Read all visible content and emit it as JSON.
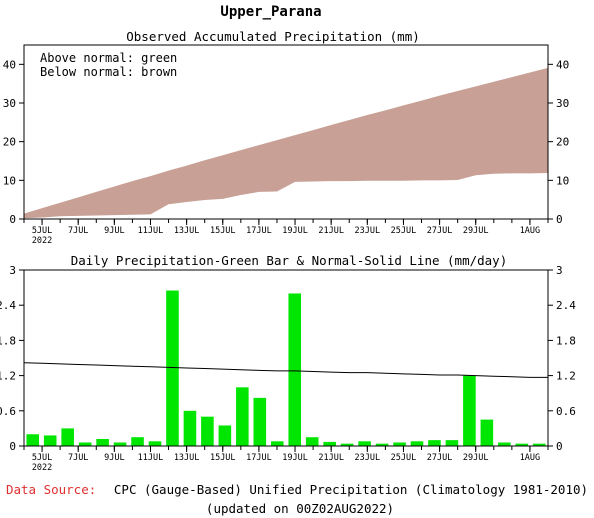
{
  "title": "Upper_Parana",
  "footer": {
    "source_label": "Data Source:",
    "source_text": "CPC (Gauge-Based) Unified Precipitation (Climatology 1981-2010)",
    "updated": "(updated on 00Z02AUG2022)"
  },
  "colors": {
    "normal_area": "#c8a096",
    "observed_area": "#ffffff",
    "bars": "#00e600",
    "normal_line": "#000000",
    "source_label": "#e03030"
  },
  "x_tick_labels": [
    "5JUL",
    "7JUL",
    "9JUL",
    "11JUL",
    "13JUL",
    "15JUL",
    "17JUL",
    "19JUL",
    "21JUL",
    "23JUL",
    "25JUL",
    "27JUL",
    "29JUL",
    "1AUG"
  ],
  "year_label": "2022",
  "chart_data": [
    {
      "type": "area",
      "title": "Observed Accumulated Precipitation (mm)",
      "notes": [
        "Above normal: green",
        "Below normal: brown"
      ],
      "x": [
        "4JUL",
        "5JUL",
        "6JUL",
        "7JUL",
        "8JUL",
        "9JUL",
        "10JUL",
        "11JUL",
        "12JUL",
        "13JUL",
        "14JUL",
        "15JUL",
        "16JUL",
        "17JUL",
        "18JUL",
        "19JUL",
        "20JUL",
        "21JUL",
        "22JUL",
        "23JUL",
        "24JUL",
        "25JUL",
        "26JUL",
        "27JUL",
        "28JUL",
        "29JUL",
        "30JUL",
        "31JUL",
        "1AUG",
        "2AUG"
      ],
      "series": [
        {
          "name": "normal",
          "values": [
            1.4,
            2.8,
            4.2,
            5.6,
            7.0,
            8.4,
            9.8,
            11.1,
            12.5,
            13.8,
            15.2,
            16.5,
            17.8,
            19.1,
            20.4,
            21.7,
            23.0,
            24.3,
            25.6,
            26.9,
            28.1,
            29.4,
            30.6,
            31.9,
            33.1,
            34.3,
            35.5,
            36.7,
            37.9,
            39.1
          ]
        },
        {
          "name": "observed",
          "values": [
            0.2,
            0.4,
            0.7,
            0.8,
            0.9,
            1.0,
            1.1,
            1.2,
            3.8,
            4.4,
            4.9,
            5.2,
            6.2,
            7.0,
            7.1,
            9.6,
            9.7,
            9.8,
            9.8,
            9.9,
            9.9,
            9.9,
            10.0,
            10.0,
            10.1,
            11.3,
            11.7,
            11.8,
            11.8,
            11.9
          ]
        }
      ],
      "ylim": [
        0,
        45
      ],
      "yticks": [
        0,
        10,
        20,
        30,
        40
      ]
    },
    {
      "type": "bar",
      "title": "Daily Precipitation-Green Bar & Normal-Solid Line (mm/day)",
      "x": [
        "4JUL",
        "5JUL",
        "6JUL",
        "7JUL",
        "8JUL",
        "9JUL",
        "10JUL",
        "11JUL",
        "12JUL",
        "13JUL",
        "14JUL",
        "15JUL",
        "16JUL",
        "17JUL",
        "18JUL",
        "19JUL",
        "20JUL",
        "21JUL",
        "22JUL",
        "23JUL",
        "24JUL",
        "25JUL",
        "26JUL",
        "27JUL",
        "28JUL",
        "29JUL",
        "30JUL",
        "31JUL",
        "1AUG",
        "2AUG"
      ],
      "series": [
        {
          "name": "daily",
          "values": [
            0.2,
            0.18,
            0.3,
            0.06,
            0.12,
            0.06,
            0.15,
            0.08,
            2.65,
            0.6,
            0.5,
            0.35,
            1.0,
            0.82,
            0.08,
            2.6,
            0.15,
            0.07,
            0.04,
            0.08,
            0.04,
            0.06,
            0.08,
            0.1,
            0.1,
            1.2,
            0.45,
            0.06,
            0.04,
            0.04
          ]
        },
        {
          "name": "normal",
          "values": [
            1.42,
            1.41,
            1.4,
            1.39,
            1.38,
            1.37,
            1.36,
            1.35,
            1.34,
            1.33,
            1.32,
            1.31,
            1.3,
            1.29,
            1.28,
            1.28,
            1.27,
            1.26,
            1.25,
            1.25,
            1.24,
            1.23,
            1.22,
            1.21,
            1.21,
            1.2,
            1.19,
            1.18,
            1.17,
            1.17
          ]
        }
      ],
      "ylim": [
        0,
        3
      ],
      "yticks": [
        0,
        0.6,
        1.2,
        1.8,
        2.4,
        3
      ]
    }
  ]
}
